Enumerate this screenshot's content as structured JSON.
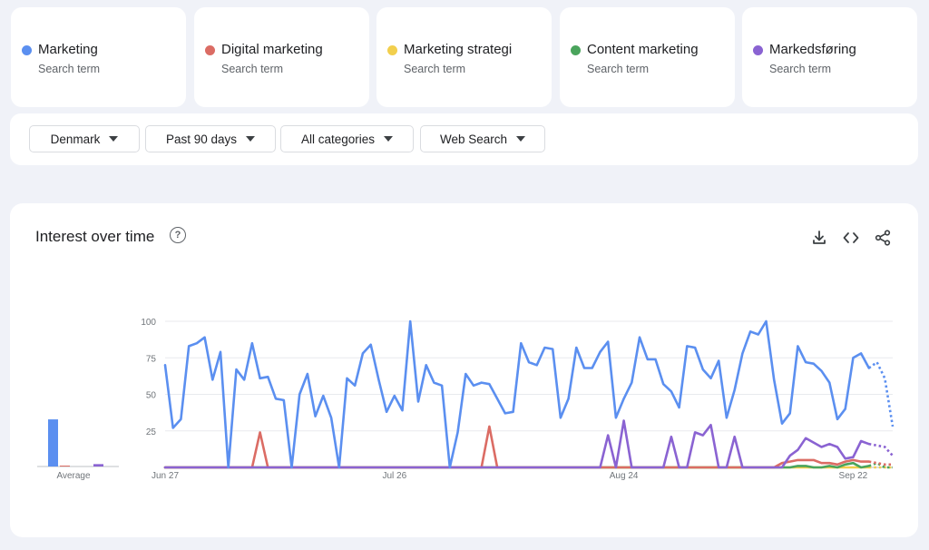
{
  "terms": [
    {
      "name": "Marketing",
      "sub": "Search term",
      "color": "#5b8ff0"
    },
    {
      "name": "Digital marketing",
      "sub": "Search term",
      "color": "#db6c64"
    },
    {
      "name": "Marketing strategi",
      "sub": "Search term",
      "color": "#f2cf4d"
    },
    {
      "name": "Content marketing",
      "sub": "Search term",
      "color": "#4aa45c"
    },
    {
      "name": "Markedsføring",
      "sub": "Search term",
      "color": "#8a63d2"
    }
  ],
  "filters": {
    "region": "Denmark",
    "time": "Past 90 days",
    "category": "All categories",
    "property": "Web Search"
  },
  "chart": {
    "title": "Interest over time",
    "help_glyph": "?",
    "icons": [
      "download-icon",
      "embed-icon",
      "share-icon"
    ]
  },
  "chart_data": [
    {
      "type": "bar",
      "categories": [
        "Marketing",
        "Digital marketing",
        "Marketing strategi",
        "Content marketing",
        "Markedsføring"
      ],
      "values": [
        59,
        1,
        0,
        0,
        3
      ],
      "xlabel": "Average",
      "ylim": [
        0,
        100
      ]
    },
    {
      "type": "line",
      "ylim": [
        0,
        100
      ],
      "yticks": [
        25,
        50,
        75,
        100
      ],
      "xtick_labels": [
        {
          "label": "Jun 27",
          "index": 0
        },
        {
          "label": "Jul 26",
          "index": 29
        },
        {
          "label": "Aug 24",
          "index": 58
        },
        {
          "label": "Sep 22",
          "index": 87
        }
      ],
      "partial_from_index": 89,
      "series": [
        {
          "name": "Marketing",
          "color": "#5b8ff0",
          "values": [
            70,
            27,
            33,
            83,
            85,
            89,
            60,
            79,
            0,
            67,
            60,
            85,
            61,
            62,
            47,
            46,
            0,
            50,
            64,
            35,
            49,
            34,
            0,
            61,
            56,
            78,
            84,
            60,
            38,
            49,
            39,
            100,
            45,
            70,
            58,
            56,
            0,
            24,
            64,
            56,
            58,
            57,
            47,
            37,
            38,
            85,
            72,
            70,
            82,
            81,
            34,
            47,
            82,
            68,
            68,
            79,
            86,
            34,
            47,
            58,
            89,
            74,
            74,
            57,
            52,
            41,
            83,
            82,
            67,
            61,
            73,
            34,
            53,
            78,
            93,
            91,
            100,
            60,
            30,
            37,
            83,
            72,
            71,
            66,
            58,
            33,
            40,
            75,
            78,
            68,
            72,
            61,
            28
          ]
        },
        {
          "name": "Digital marketing",
          "color": "#db6c64",
          "values": [
            0,
            0,
            0,
            0,
            0,
            0,
            0,
            0,
            0,
            0,
            0,
            0,
            24,
            0,
            0,
            0,
            0,
            0,
            0,
            0,
            0,
            0,
            0,
            0,
            0,
            0,
            0,
            0,
            0,
            0,
            0,
            0,
            0,
            0,
            0,
            0,
            0,
            0,
            0,
            0,
            0,
            28,
            0,
            0,
            0,
            0,
            0,
            0,
            0,
            0,
            0,
            0,
            0,
            0,
            0,
            0,
            0,
            0,
            0,
            0,
            0,
            0,
            0,
            0,
            0,
            0,
            0,
            0,
            0,
            0,
            0,
            0,
            0,
            0,
            0,
            0,
            0,
            0,
            3,
            4,
            5,
            5,
            5,
            3,
            3,
            2,
            4,
            5,
            4,
            4,
            3,
            2,
            2
          ]
        },
        {
          "name": "Marketing strategi",
          "color": "#f2cf4d",
          "values": [
            0,
            0,
            0,
            0,
            0,
            0,
            0,
            0,
            0,
            0,
            0,
            0,
            0,
            0,
            0,
            0,
            0,
            0,
            0,
            0,
            0,
            0,
            0,
            0,
            0,
            0,
            0,
            0,
            0,
            0,
            0,
            0,
            0,
            0,
            0,
            0,
            0,
            0,
            0,
            0,
            0,
            0,
            0,
            0,
            0,
            0,
            0,
            0,
            0,
            0,
            0,
            0,
            0,
            0,
            0,
            0,
            0,
            0,
            0,
            0,
            0,
            0,
            0,
            0,
            0,
            0,
            0,
            0,
            0,
            0,
            0,
            0,
            0,
            0,
            0,
            0,
            0,
            0,
            0,
            0,
            0,
            0,
            0,
            0,
            0,
            0,
            0,
            0,
            0,
            0,
            0,
            0,
            0
          ]
        },
        {
          "name": "Content marketing",
          "color": "#4aa45c",
          "values": [
            0,
            0,
            0,
            0,
            0,
            0,
            0,
            0,
            0,
            0,
            0,
            0,
            0,
            0,
            0,
            0,
            0,
            0,
            0,
            0,
            0,
            0,
            0,
            0,
            0,
            0,
            0,
            0,
            0,
            0,
            0,
            0,
            0,
            0,
            0,
            0,
            0,
            0,
            0,
            0,
            0,
            0,
            0,
            0,
            0,
            0,
            0,
            0,
            0,
            0,
            0,
            0,
            0,
            0,
            0,
            0,
            0,
            0,
            0,
            0,
            0,
            0,
            0,
            0,
            0,
            0,
            0,
            0,
            0,
            0,
            0,
            0,
            0,
            0,
            0,
            0,
            0,
            0,
            0,
            0,
            1,
            1,
            0,
            0,
            1,
            0,
            2,
            3,
            0,
            1,
            3,
            0,
            0
          ]
        },
        {
          "name": "Markedsføring",
          "color": "#8a63d2",
          "values": [
            0,
            0,
            0,
            0,
            0,
            0,
            0,
            0,
            0,
            0,
            0,
            0,
            0,
            0,
            0,
            0,
            0,
            0,
            0,
            0,
            0,
            0,
            0,
            0,
            0,
            0,
            0,
            0,
            0,
            0,
            0,
            0,
            0,
            0,
            0,
            0,
            0,
            0,
            0,
            0,
            0,
            0,
            0,
            0,
            0,
            0,
            0,
            0,
            0,
            0,
            0,
            0,
            0,
            0,
            0,
            0,
            22,
            0,
            32,
            0,
            0,
            0,
            0,
            0,
            21,
            0,
            0,
            24,
            22,
            29,
            0,
            0,
            21,
            0,
            0,
            0,
            0,
            0,
            0,
            8,
            12,
            20,
            17,
            14,
            16,
            14,
            6,
            7,
            18,
            16,
            15,
            14,
            8
          ]
        }
      ]
    }
  ]
}
